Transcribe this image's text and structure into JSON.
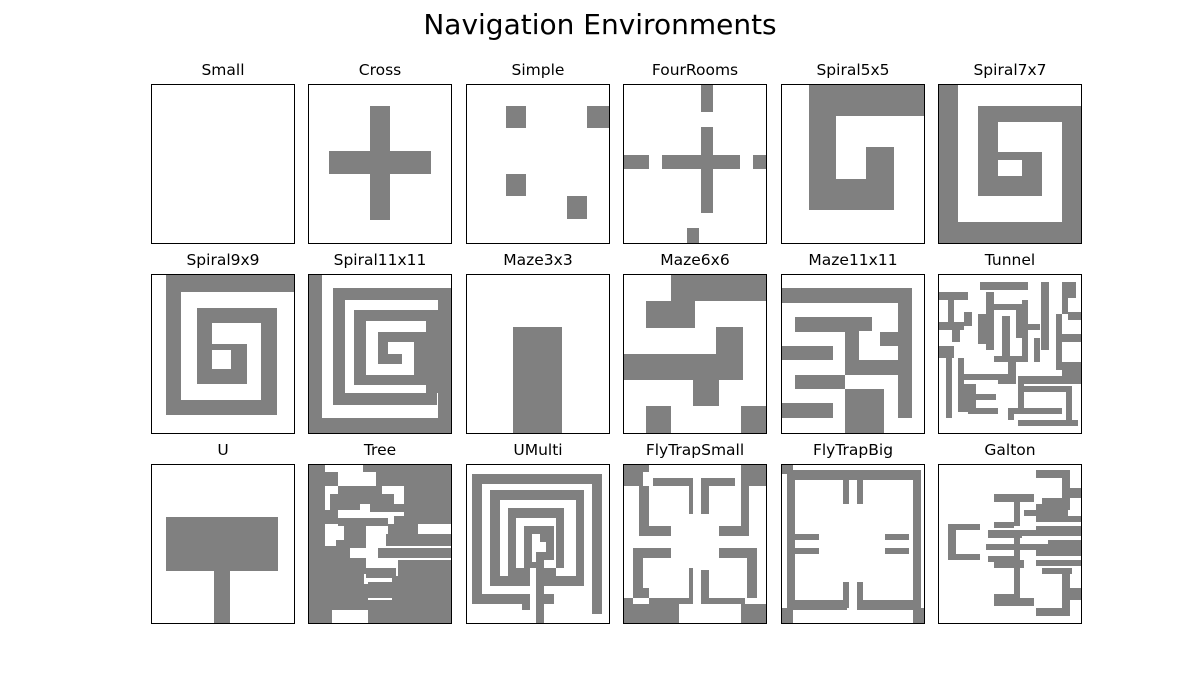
{
  "figure": {
    "title": "Navigation Environments",
    "wall_color": "#808080",
    "background_color": "#ffffff",
    "frame_color": "#000000"
  },
  "environments": [
    {
      "name": "Small"
    },
    {
      "name": "Cross"
    },
    {
      "name": "Simple"
    },
    {
      "name": "FourRooms"
    },
    {
      "name": "Spiral5x5"
    },
    {
      "name": "Spiral7x7"
    },
    {
      "name": "Spiral9x9"
    },
    {
      "name": "Spiral11x11"
    },
    {
      "name": "Maze3x3"
    },
    {
      "name": "Maze6x6"
    },
    {
      "name": "Maze11x11"
    },
    {
      "name": "Tunnel"
    },
    {
      "name": "U"
    },
    {
      "name": "Tree"
    },
    {
      "name": "UMulti"
    },
    {
      "name": "FlyTrapSmall"
    },
    {
      "name": "FlyTrapBig"
    },
    {
      "name": "Galton"
    }
  ]
}
